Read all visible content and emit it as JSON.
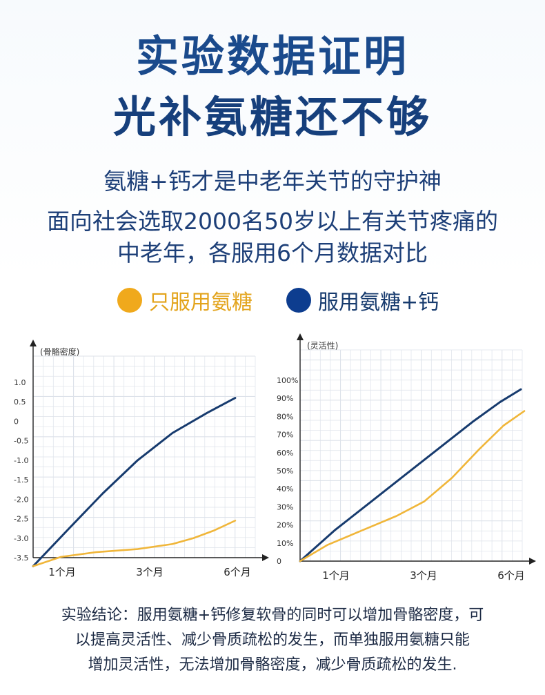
{
  "header": {
    "title_line1": "实验数据证明",
    "title_line2": "光补氨糖还不够"
  },
  "intro": {
    "line1": "氨糖+钙才是中老年关节的守护神",
    "line2": "面向社会选取2000名50岁以上有关节疼痛的",
    "line3": "中老年，各服用6个月数据对比"
  },
  "legend": {
    "items": [
      {
        "label": "只服用氨糖",
        "color": "#f0a91c"
      },
      {
        "label": "服用氨糖+钙",
        "color": "#0d3d8f"
      }
    ]
  },
  "colors": {
    "title": "#1a4a8c",
    "orange": "#f0b63a",
    "navy": "#173b6e",
    "grid": "#dde2ea",
    "axis": "#222222"
  },
  "chart_data": [
    {
      "type": "line",
      "title": "",
      "ylabel": "(骨骼密度)",
      "xlabel": "",
      "x_ticks": [
        "1个月",
        "3个月",
        "6个月"
      ],
      "y_ticks": [
        "1.0",
        "0.5",
        "0",
        "-0.5",
        "-1.0",
        "-1.5",
        "-2.0",
        "-2.5",
        "-3.0",
        "-3.5"
      ],
      "ylim": [
        -3.5,
        1.0
      ],
      "grid": true,
      "series": [
        {
          "name": "服用氨糖+钙",
          "color_key": "navy",
          "points": [
            [
              0,
              -3.72
            ],
            [
              0.5,
              -2.78
            ],
            [
              1,
              -1.85
            ],
            [
              1.5,
              -1.0
            ],
            [
              2,
              -0.3
            ],
            [
              2.5,
              0.22
            ],
            [
              2.9,
              0.6
            ]
          ]
        },
        {
          "name": "只服用氨糖",
          "color_key": "orange",
          "points": [
            [
              0,
              -3.72
            ],
            [
              0.4,
              -3.48
            ],
            [
              0.9,
              -3.36
            ],
            [
              1.5,
              -3.28
            ],
            [
              2.0,
              -3.15
            ],
            [
              2.3,
              -3.0
            ],
            [
              2.6,
              -2.8
            ],
            [
              2.9,
              -2.55
            ]
          ]
        }
      ]
    },
    {
      "type": "line",
      "title": "",
      "ylabel": "(灵活性)",
      "xlabel": "",
      "x_ticks": [
        "1个月",
        "3个月",
        "6个月"
      ],
      "y_ticks": [
        "100%",
        "90%",
        "80%",
        "70%",
        "60%",
        "50%",
        "40%",
        "30%",
        "20%",
        "10%",
        "0"
      ],
      "ylim": [
        0,
        100
      ],
      "grid": true,
      "series": [
        {
          "name": "服用氨糖+钙",
          "color_key": "navy",
          "points": [
            [
              0,
              0
            ],
            [
              0.5,
              17
            ],
            [
              1,
              32
            ],
            [
              1.5,
              47
            ],
            [
              2,
              62
            ],
            [
              2.5,
              77
            ],
            [
              2.9,
              88
            ],
            [
              3.2,
              95
            ]
          ]
        },
        {
          "name": "只服用氨糖",
          "color_key": "orange",
          "points": [
            [
              0,
              0
            ],
            [
              0.4,
              9
            ],
            [
              0.9,
              17
            ],
            [
              1.4,
              25
            ],
            [
              1.8,
              33
            ],
            [
              2.2,
              46
            ],
            [
              2.6,
              62
            ],
            [
              2.95,
              75
            ],
            [
              3.25,
              83
            ]
          ]
        }
      ]
    }
  ],
  "conclusion": {
    "line1": "实验结论：服用氨糖+钙修复软骨的同时可以增加骨骼密度，可",
    "line2": "以提高灵活性、减少骨质疏松的发生，而单独服用氨糖只能",
    "line3": "增加灵活性，无法增加骨骼密度，减少骨质疏松的发生."
  }
}
